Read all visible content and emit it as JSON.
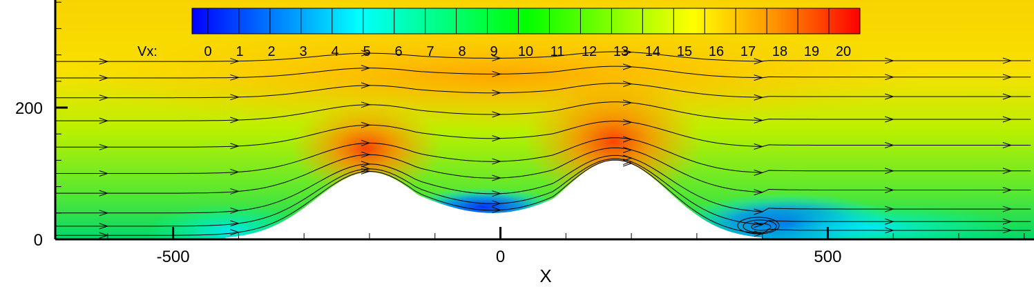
{
  "chart_data": {
    "type": "heatmap",
    "title": "",
    "variable": "Vx",
    "colorbar": {
      "label": "Vx:",
      "ticks": [
        "0",
        "1",
        "2",
        "3",
        "4",
        "5",
        "6",
        "7",
        "8",
        "9",
        "10",
        "11",
        "12",
        "13",
        "14",
        "15",
        "16",
        "17",
        "18",
        "19",
        "20"
      ],
      "range": [
        0,
        20
      ],
      "colormap": [
        "#0000ff",
        "#00ffff",
        "#00ff00",
        "#ffff00",
        "#ff0000"
      ]
    },
    "xlabel": "X",
    "ylabel": "",
    "xlim": [
      -680,
      815
    ],
    "ylim": [
      0,
      380
    ],
    "x_ticks": [
      {
        "value": -500,
        "label": "-500"
      },
      {
        "value": 0,
        "label": "0"
      },
      {
        "value": 500,
        "label": "500"
      }
    ],
    "y_ticks": [
      {
        "value": 0,
        "label": "0"
      },
      {
        "value": 200,
        "label": "200"
      }
    ],
    "terrain": {
      "description": "two hills",
      "hills": [
        {
          "center_x": -200,
          "height": 102
        },
        {
          "center_x": 175,
          "height": 120
        }
      ],
      "valley_bottom": {
        "x": 0,
        "y": 40
      }
    },
    "streamlines": true,
    "recirculation_zone": {
      "x": 400,
      "y": 15
    }
  }
}
